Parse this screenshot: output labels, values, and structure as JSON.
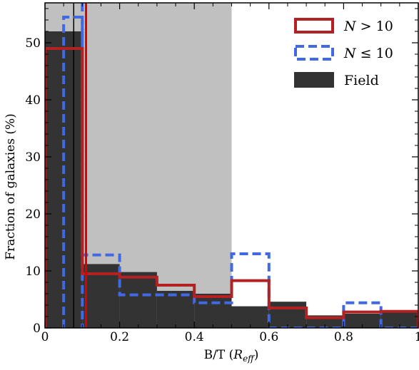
{
  "chart_data": {
    "type": "histogram",
    "xlabel": "B/T (R_eff)",
    "xlabel_main": "B/T (",
    "xlabel_var": "R",
    "xlabel_sub": "eff",
    "xlabel_close": ")",
    "ylabel": "Fraction of galaxies (%)",
    "xlim": [
      0,
      1
    ],
    "ylim": [
      0,
      57
    ],
    "xticks": [
      0,
      0.2,
      0.4,
      0.6,
      0.8,
      1
    ],
    "xtick_labels": [
      "0",
      "0.2",
      "0.4",
      "0.6",
      "0.8",
      "1"
    ],
    "yticks": [
      0,
      10,
      20,
      30,
      40,
      50
    ],
    "ytick_labels": [
      "0",
      "10",
      "20",
      "30",
      "40",
      "50"
    ],
    "grid": false,
    "legend_position": "top-right",
    "shaded_region": {
      "x0": 0,
      "x1": 0.5,
      "color": "#c0c0c0"
    },
    "series": [
      {
        "name": "Field",
        "style": "filled",
        "color": "#333333",
        "bins": [
          {
            "x0": 0.0,
            "x1": 0.1,
            "y": 52
          },
          {
            "x0": 0.1,
            "x1": 0.2,
            "y": 11.2
          },
          {
            "x0": 0.2,
            "x1": 0.3,
            "y": 9.8
          },
          {
            "x0": 0.3,
            "x1": 0.4,
            "y": 6.5
          },
          {
            "x0": 0.4,
            "x1": 0.5,
            "y": 6.0
          },
          {
            "x0": 0.5,
            "x1": 0.6,
            "y": 3.8
          },
          {
            "x0": 0.6,
            "x1": 0.7,
            "y": 4.6
          },
          {
            "x0": 0.7,
            "x1": 0.8,
            "y": 2.2
          },
          {
            "x0": 0.8,
            "x1": 0.9,
            "y": 2.5
          },
          {
            "x0": 0.9,
            "x1": 1.0,
            "y": 2.8
          }
        ],
        "median": 0.077
      },
      {
        "name": "N > 10",
        "legend_var": "N",
        "legend_rel": " > 10",
        "style": "step",
        "color": "#b22222",
        "bins": [
          {
            "x0": 0.0,
            "x1": 0.1,
            "y": 49
          },
          {
            "x0": 0.1,
            "x1": 0.2,
            "y": 9.5
          },
          {
            "x0": 0.2,
            "x1": 0.3,
            "y": 8.9
          },
          {
            "x0": 0.3,
            "x1": 0.4,
            "y": 7.5
          },
          {
            "x0": 0.4,
            "x1": 0.5,
            "y": 5.5
          },
          {
            "x0": 0.5,
            "x1": 0.6,
            "y": 8.3
          },
          {
            "x0": 0.6,
            "x1": 0.7,
            "y": 3.5
          },
          {
            "x0": 0.7,
            "x1": 0.8,
            "y": 1.8
          },
          {
            "x0": 0.8,
            "x1": 0.9,
            "y": 2.8
          },
          {
            "x0": 0.9,
            "x1": 1.0,
            "y": 2.9
          }
        ],
        "median": 0.11
      },
      {
        "name": "N ≤ 10",
        "legend_var": "N",
        "legend_rel": " ≤ 10",
        "style": "dashed-step",
        "color": "#4169e1",
        "bins": [
          {
            "x0": 0.05,
            "x1": 0.1,
            "y": 54.5
          },
          {
            "x0": 0.1,
            "x1": 0.2,
            "y": 12.8
          },
          {
            "x0": 0.2,
            "x1": 0.3,
            "y": 5.8
          },
          {
            "x0": 0.3,
            "x1": 0.4,
            "y": 5.8
          },
          {
            "x0": 0.4,
            "x1": 0.5,
            "y": 4.4
          },
          {
            "x0": 0.5,
            "x1": 0.6,
            "y": 13.0
          },
          {
            "x0": 0.6,
            "x1": 0.7,
            "y": 0
          },
          {
            "x0": 0.7,
            "x1": 0.8,
            "y": 0
          },
          {
            "x0": 0.8,
            "x1": 0.9,
            "y": 4.4
          },
          {
            "x0": 0.9,
            "x1": 1.0,
            "y": 0
          }
        ],
        "median": 0.1
      }
    ]
  }
}
